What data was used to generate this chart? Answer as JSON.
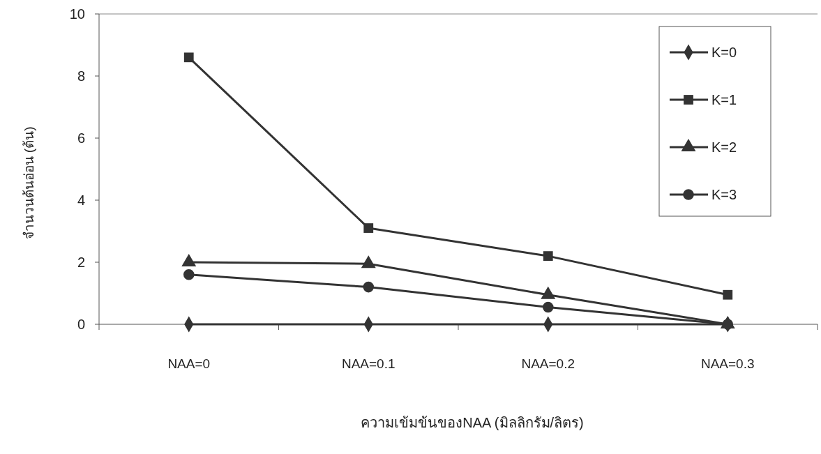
{
  "chart_data": {
    "type": "line",
    "xlabel": "ความเข้มข้นของNAA (มิลลิกรัม/ลิตร)",
    "ylabel": "จำนวนต้นอ่อน (ต้น)",
    "categories": [
      "NAA=0",
      "NAA=0.1",
      "NAA=0.2",
      "NAA=0.3"
    ],
    "ylim": [
      0,
      10
    ],
    "yticks": [
      0,
      2,
      4,
      6,
      8,
      10
    ],
    "grid": false,
    "legend": "top right",
    "series": [
      {
        "name": "K=0",
        "color": "#333333",
        "marker": "diamond",
        "values": [
          0,
          0,
          0,
          0
        ]
      },
      {
        "name": "K=1",
        "color": "#333333",
        "marker": "square",
        "values": [
          8.6,
          3.1,
          2.2,
          0.95
        ]
      },
      {
        "name": "K=2",
        "color": "#333333",
        "marker": "triangle",
        "values": [
          2.0,
          1.95,
          0.95,
          0
        ]
      },
      {
        "name": "K=3",
        "color": "#333333",
        "marker": "circle",
        "values": [
          1.6,
          1.2,
          0.55,
          0
        ]
      }
    ]
  }
}
